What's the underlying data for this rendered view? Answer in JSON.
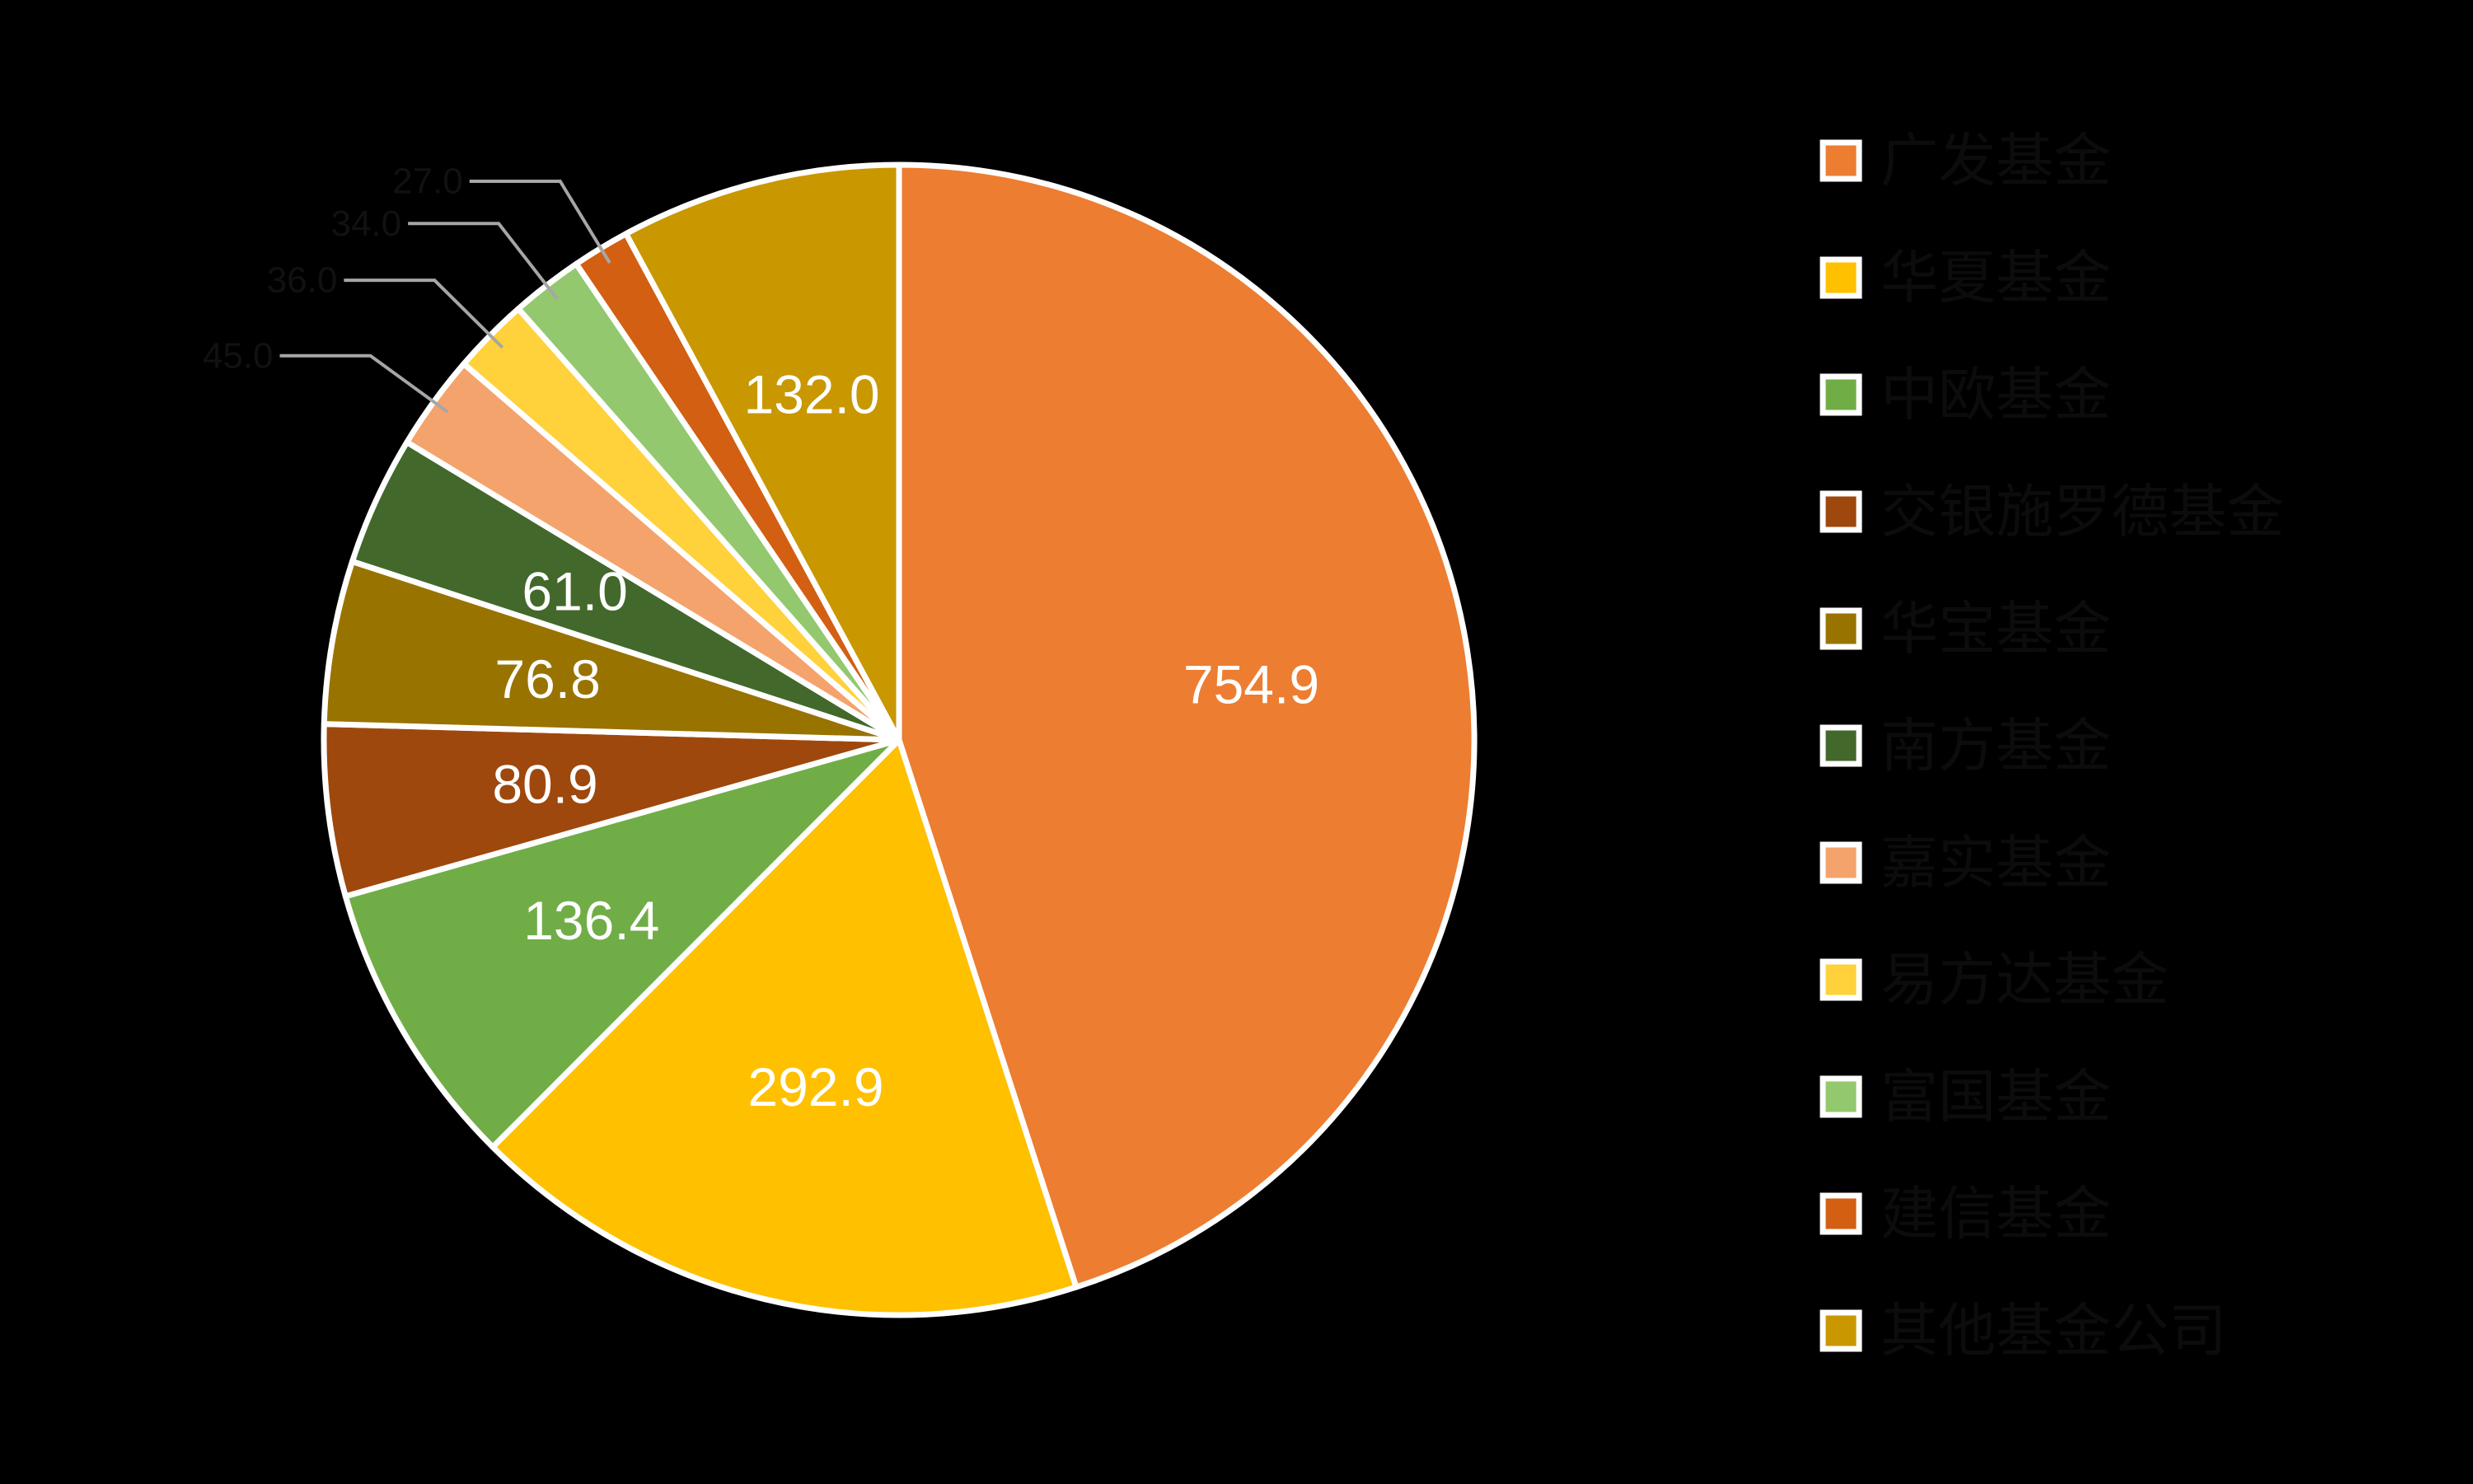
{
  "chart_data": {
    "type": "pie",
    "background": "#000000",
    "slice_border": "#ffffff",
    "legend_position": "right",
    "slices": [
      {
        "name": "广发基金",
        "value": 754.9,
        "label": "754.9",
        "color": "#ED7D31"
      },
      {
        "name": "华夏基金",
        "value": 292.9,
        "label": "292.9",
        "color": "#FFC000"
      },
      {
        "name": "中欧基金",
        "value": 136.4,
        "label": "136.4",
        "color": "#70AD47"
      },
      {
        "name": "交银施罗德基金",
        "value": 80.9,
        "label": "80.9",
        "color": "#9E480E"
      },
      {
        "name": "华宝基金",
        "value": 76.8,
        "label": "76.8",
        "color": "#997300"
      },
      {
        "name": "南方基金",
        "value": 61.0,
        "label": "61.0",
        "color": "#43682B"
      },
      {
        "name": "嘉实基金",
        "value": 45.0,
        "label": "45.0",
        "color": "#F4A36C"
      },
      {
        "name": "易方达基金",
        "value": 36.0,
        "label": "36.0",
        "color": "#FFD13A"
      },
      {
        "name": "富国基金",
        "value": 34.0,
        "label": "34.0",
        "color": "#93C86E"
      },
      {
        "name": "建信基金",
        "value": 27.0,
        "label": "27.0",
        "color": "#D35F12"
      },
      {
        "name": "其他基金公司",
        "value": 132.0,
        "label": "132.0",
        "color": "#C99700"
      }
    ]
  }
}
